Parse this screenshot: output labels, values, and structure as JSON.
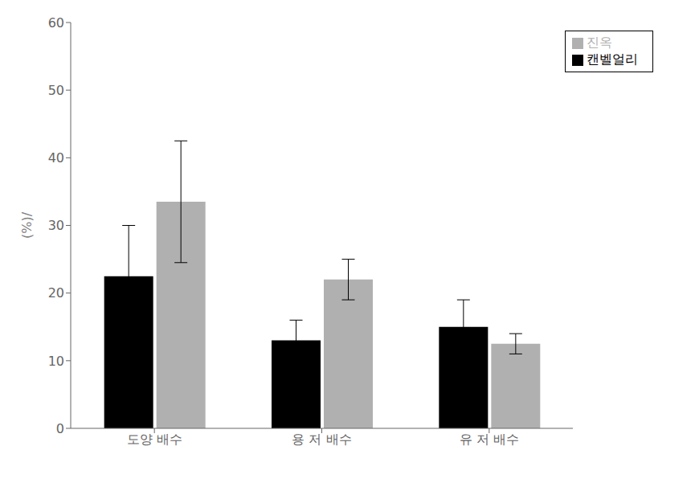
{
  "chart_data": {
    "type": "bar",
    "categories": [
      "도양 배수",
      "용 저 배수",
      "유 저 배수"
    ],
    "series": [
      {
        "name": "캔벨얼리",
        "color": "#000000",
        "values": [
          22.5,
          13.0,
          15.0
        ],
        "errors": [
          7.5,
          3.0,
          4.0
        ]
      },
      {
        "name": "진옥",
        "color": "#b0b0b0",
        "values": [
          33.5,
          22.0,
          12.5
        ],
        "errors": [
          9.0,
          3.0,
          1.5
        ]
      }
    ],
    "ylabel": "(%)/",
    "ylim": [
      0,
      60
    ],
    "yticks": [
      0,
      10,
      20,
      30,
      40,
      50,
      60
    ],
    "grid": false,
    "legend": "upper right"
  }
}
